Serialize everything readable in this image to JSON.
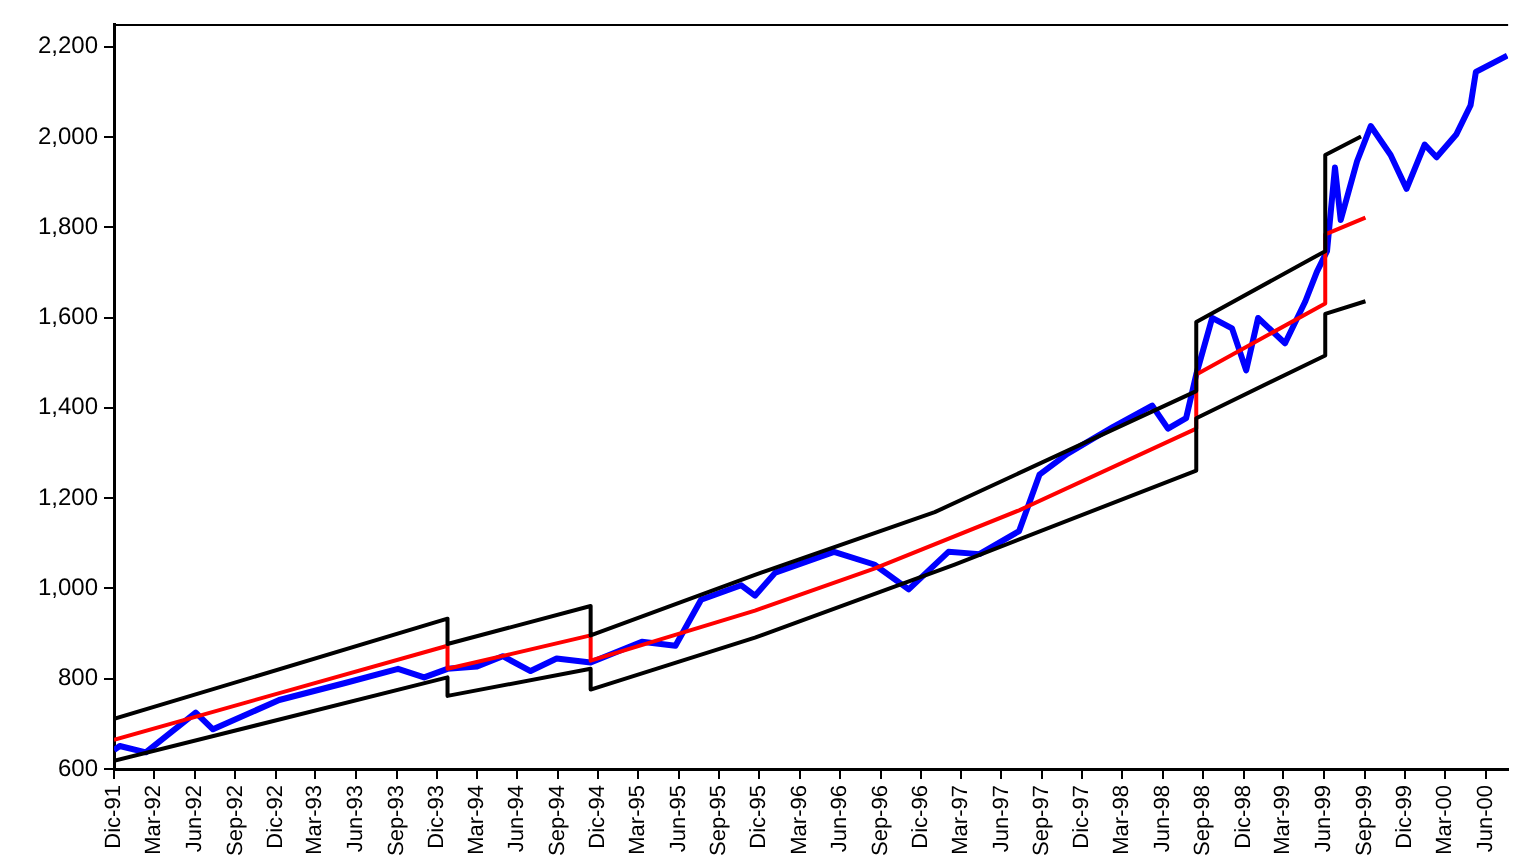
{
  "chart_data": {
    "type": "line",
    "ylim": [
      600,
      2250
    ],
    "yticks": [
      {
        "value": 600,
        "label": "600"
      },
      {
        "value": 800,
        "label": "800"
      },
      {
        "value": 1000,
        "label": "1,000"
      },
      {
        "value": 1200,
        "label": "1,200"
      },
      {
        "value": 1400,
        "label": "1,400"
      },
      {
        "value": 1600,
        "label": "1,600"
      },
      {
        "value": 1800,
        "label": "1,800"
      },
      {
        "value": 2000,
        "label": "2,000"
      },
      {
        "value": 2200,
        "label": "2,200"
      }
    ],
    "xlim": [
      "1991-12",
      "2000-07-22"
    ],
    "xticks": [
      {
        "value": "1991-12",
        "label": "Dic-91"
      },
      {
        "value": "1992-03",
        "label": "Mar-92"
      },
      {
        "value": "1992-06",
        "label": "Jun-92"
      },
      {
        "value": "1992-09",
        "label": "Sep-92"
      },
      {
        "value": "1992-12",
        "label": "Dic-92"
      },
      {
        "value": "1993-03",
        "label": "Mar-93"
      },
      {
        "value": "1993-06",
        "label": "Jun-93"
      },
      {
        "value": "1993-09",
        "label": "Sep-93"
      },
      {
        "value": "1993-12",
        "label": "Dic-93"
      },
      {
        "value": "1994-03",
        "label": "Mar-94"
      },
      {
        "value": "1994-06",
        "label": "Jun-94"
      },
      {
        "value": "1994-09",
        "label": "Sep-94"
      },
      {
        "value": "1994-12",
        "label": "Dic-94"
      },
      {
        "value": "1995-03",
        "label": "Mar-95"
      },
      {
        "value": "1995-06",
        "label": "Jun-95"
      },
      {
        "value": "1995-09",
        "label": "Sep-95"
      },
      {
        "value": "1995-12",
        "label": "Dic-95"
      },
      {
        "value": "1996-03",
        "label": "Mar-96"
      },
      {
        "value": "1996-06",
        "label": "Jun-96"
      },
      {
        "value": "1996-09",
        "label": "Sep-96"
      },
      {
        "value": "1996-12",
        "label": "Dic-96"
      },
      {
        "value": "1997-03",
        "label": "Mar-97"
      },
      {
        "value": "1997-06",
        "label": "Jun-97"
      },
      {
        "value": "1997-09",
        "label": "Sep-97"
      },
      {
        "value": "1997-12",
        "label": "Dic-97"
      },
      {
        "value": "1998-03",
        "label": "Mar-98"
      },
      {
        "value": "1998-06",
        "label": "Jun-98"
      },
      {
        "value": "1998-09",
        "label": "Sep-98"
      },
      {
        "value": "1998-12",
        "label": "Dic-98"
      },
      {
        "value": "1999-03",
        "label": "Mar-99"
      },
      {
        "value": "1999-06",
        "label": "Jun-99"
      },
      {
        "value": "1999-09",
        "label": "Sep-99"
      },
      {
        "value": "1999-12",
        "label": "Dic-99"
      },
      {
        "value": "2000-03",
        "label": "Mar-00"
      },
      {
        "value": "2000-06",
        "label": "Jun-00"
      }
    ],
    "grid": false,
    "legend": false,
    "marker": "none",
    "line_style": "solid",
    "series": [
      {
        "color": "#000000",
        "x": [
          "1991-12-01",
          "1993-12-25",
          "1993-12-25",
          "1994-11-14",
          "1994-11-14",
          "1995-11-21",
          "1997-01-01",
          "1998-08-16",
          "1998-08-16",
          "1999-06-04",
          "1999-06-04",
          "1999-08-24"
        ],
        "values": [
          711,
          933,
          877,
          961,
          896,
          1030,
          1169,
          1437,
          1590,
          1747,
          1960,
          2001
        ]
      },
      {
        "color": "#000000",
        "x": [
          "1991-12-01",
          "1993-12-25",
          "1993-12-25",
          "1994-11-14",
          "1994-11-14",
          "1995-11-21",
          "1997-02-15",
          "1998-08-16",
          "1998-08-16",
          "1999-06-04",
          "1999-06-04",
          "1999-09-03"
        ],
        "values": [
          618,
          803,
          762,
          822,
          776,
          891,
          1053,
          1261,
          1377,
          1516,
          1608,
          1636
        ]
      },
      {
        "color": "#ff0000",
        "x": [
          "1991-12-01",
          "1993-12-25",
          "1993-12-25",
          "1994-11-14",
          "1994-11-14",
          "1995-11-21",
          "1996-08-17",
          "1997-07-11",
          "1998-08-16",
          "1998-08-16",
          "1999-06-04",
          "1999-06-04",
          "1999-09-03"
        ],
        "values": [
          665,
          873,
          822,
          896,
          840,
          951,
          1044,
          1173,
          1354,
          1474,
          1631,
          1784,
          1821
        ]
      },
      {
        "color": "#0000ff",
        "x": [
          "1991-12-01",
          "1991-12-14",
          "1992-02-11",
          "1992-06-03",
          "1992-07-12",
          "1992-12-09",
          "1993-05-05",
          "1993-09-04",
          "1993-11-02",
          "1993-12-25",
          "1994-03-02",
          "1994-04-29",
          "1994-07-01",
          "1994-08-29",
          "1994-11-14",
          "1995-03-10",
          "1995-05-25",
          "1995-07-22",
          "1995-10-21",
          "1995-11-21",
          "1996-01-06",
          "1996-05-18",
          "1996-08-17",
          "1996-11-03",
          "1997-02-01",
          "1997-04-12",
          "1997-07-11",
          "1997-08-26",
          "1997-10-28",
          "1998-02-09",
          "1998-05-08",
          "1998-06-13",
          "1998-07-24",
          "1998-08-16",
          "1998-09-21",
          "1998-11-05",
          "1998-12-07",
          "1999-01-03",
          "1999-03-05",
          "1999-04-20",
          "1999-05-16",
          "1999-06-08",
          "1999-06-26",
          "1999-07-09",
          "1999-08-15",
          "1999-09-15",
          "1999-10-30",
          "1999-12-05",
          "2000-01-15",
          "2000-02-11",
          "2000-03-27",
          "2000-04-28",
          "2000-05-10",
          "2000-07-20"
        ],
        "values": [
          642,
          651,
          637,
          725,
          688,
          753,
          790,
          822,
          803,
          822,
          827,
          850,
          817,
          845,
          836,
          882,
          873,
          975,
          1007,
          984,
          1035,
          1081,
          1053,
          998,
          1081,
          1076,
          1127,
          1252,
          1298,
          1358,
          1405,
          1354,
          1377,
          1474,
          1599,
          1576,
          1483,
          1599,
          1543,
          1636,
          1701,
          1747,
          1932,
          1816,
          1946,
          2024,
          1960,
          1885,
          1983,
          1955,
          2006,
          2070,
          2144,
          2180
        ]
      }
    ]
  }
}
